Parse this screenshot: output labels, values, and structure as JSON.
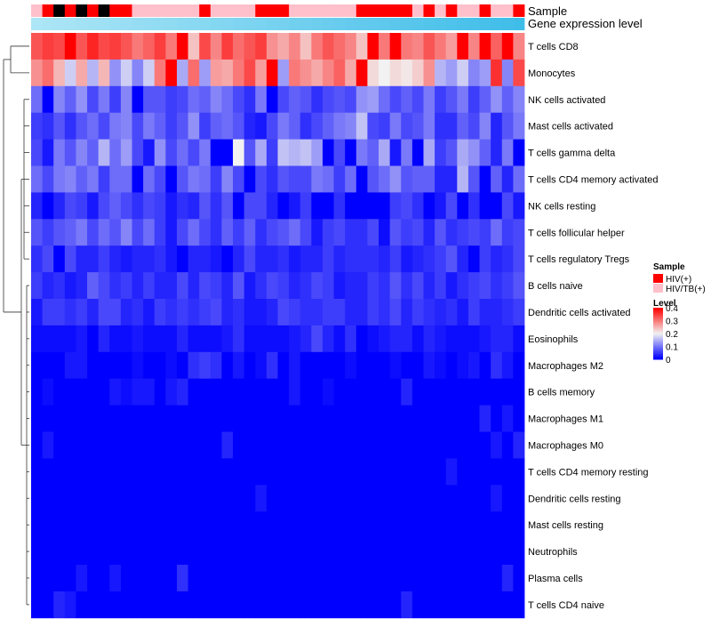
{
  "chart_data": {
    "type": "heatmap",
    "title": "",
    "annotation_tracks": [
      {
        "name": "Sample"
      },
      {
        "name": "Gene expression level"
      }
    ],
    "sample_groups": [
      {
        "label": "HIV(+)",
        "color": "#ff0000"
      },
      {
        "label": "HIV/TB(+)",
        "color": "#ffc0cb"
      }
    ],
    "sample_assignment": "21010101122222212222111222222111112121221221",
    "expression_gradient": {
      "from": "#ade6f6",
      "to": "#3fbde9"
    },
    "legend": {
      "sample_title": "Sample",
      "level_title": "Level",
      "ticks": [
        "0",
        "0.1",
        "0.2",
        "0.3",
        "0.4"
      ],
      "tick_values": [
        0,
        0.1,
        0.2,
        0.3,
        0.4
      ]
    },
    "color_scale": {
      "min": 0,
      "mid": 0.2,
      "max": 0.4,
      "low": "#0000ff",
      "midcolor": "#f2f2f2",
      "high": "#ff0000"
    },
    "value_range": [
      0,
      0.4
    ],
    "columns": 44,
    "rows": [
      "T cells CD8",
      "Monocytes",
      "NK cells activated",
      "Mast cells activated",
      "T cells gamma delta",
      "T cells CD4 memory activated",
      "NK cells resting",
      "T cells follicular helper",
      "T cells regulatory  Tregs",
      "B cells naive",
      "Dendritic cells activated",
      "Eosinophils",
      "Macrophages M2",
      "B cells memory",
      "Macrophages M1",
      "Macrophages M0",
      "T cells CD4 memory resting",
      "Dendritic cells resting",
      "Mast cells resting",
      "Neutrophils",
      "Plasma cells",
      "T cells CD4 naive"
    ],
    "values": [
      [
        0.33,
        0.35,
        0.34,
        0.4,
        0.33,
        0.37,
        0.34,
        0.35,
        0.33,
        0.3,
        0.32,
        0.35,
        0.3,
        0.4,
        0.24,
        0.34,
        0.29,
        0.35,
        0.31,
        0.33,
        0.35,
        0.28,
        0.26,
        0.29,
        0.24,
        0.3,
        0.33,
        0.31,
        0.29,
        0.24,
        0.4,
        0.3,
        0.4,
        0.3,
        0.29,
        0.33,
        0.3,
        0.27,
        0.4,
        0.29,
        0.4,
        0.32,
        0.4,
        0.29
      ],
      [
        0.28,
        0.31,
        0.25,
        0.17,
        0.26,
        0.15,
        0.25,
        0.12,
        0.17,
        0.11,
        0.17,
        0.3,
        0.4,
        0.14,
        0.31,
        0.13,
        0.27,
        0.26,
        0.3,
        0.34,
        0.27,
        0.4,
        0.13,
        0.3,
        0.28,
        0.26,
        0.29,
        0.32,
        0.26,
        0.4,
        0.22,
        0.2,
        0.22,
        0.21,
        0.23,
        0.28,
        0.15,
        0.13,
        0.17,
        0.11,
        0.13,
        0.36,
        0.11,
        0.34
      ],
      [
        0.09,
        0.0,
        0.11,
        0.08,
        0.12,
        0.06,
        0.1,
        0.05,
        0.11,
        0.0,
        0.07,
        0.07,
        0.05,
        0.06,
        0.09,
        0.08,
        0.11,
        0.09,
        0.06,
        0.04,
        0.1,
        0.0,
        0.06,
        0.08,
        0.07,
        0.04,
        0.06,
        0.07,
        0.06,
        0.12,
        0.13,
        0.09,
        0.06,
        0.08,
        0.06,
        0.1,
        0.05,
        0.07,
        0.1,
        0.05,
        0.08,
        0.12,
        0.08,
        0.11
      ],
      [
        0.05,
        0.04,
        0.07,
        0.04,
        0.07,
        0.09,
        0.06,
        0.1,
        0.11,
        0.06,
        0.1,
        0.08,
        0.05,
        0.07,
        0.12,
        0.05,
        0.08,
        0.09,
        0.07,
        0.03,
        0.02,
        0.06,
        0.1,
        0.08,
        0.04,
        0.06,
        0.08,
        0.1,
        0.11,
        0.16,
        0.06,
        0.05,
        0.1,
        0.06,
        0.07,
        0.1,
        0.04,
        0.04,
        0.08,
        0.06,
        0.11,
        0.03,
        0.07,
        0.1
      ],
      [
        0.06,
        0.02,
        0.1,
        0.07,
        0.11,
        0.08,
        0.15,
        0.09,
        0.13,
        0.06,
        0.02,
        0.12,
        0.06,
        0.09,
        0.06,
        0.1,
        0.0,
        0.0,
        0.2,
        0.07,
        0.14,
        0.05,
        0.16,
        0.15,
        0.16,
        0.13,
        0.0,
        0.06,
        0.0,
        0.1,
        0.08,
        0.14,
        0.02,
        0.1,
        0.0,
        0.14,
        0.05,
        0.07,
        0.14,
        0.12,
        0.08,
        0.03,
        0.1,
        0.0
      ],
      [
        0.09,
        0.06,
        0.1,
        0.11,
        0.08,
        0.1,
        0.05,
        0.09,
        0.09,
        0.0,
        0.09,
        0.06,
        0.0,
        0.07,
        0.1,
        0.09,
        0.05,
        0.11,
        0.06,
        0.0,
        0.06,
        0.04,
        0.07,
        0.06,
        0.06,
        0.1,
        0.09,
        0.05,
        0.09,
        0.0,
        0.07,
        0.09,
        0.12,
        0.07,
        0.08,
        0.08,
        0.03,
        0.03,
        0.15,
        0.07,
        0.0,
        0.08,
        0.03,
        0.09
      ],
      [
        0.03,
        0.0,
        0.03,
        0.06,
        0.05,
        0.02,
        0.06,
        0.08,
        0.06,
        0.04,
        0.06,
        0.05,
        0.02,
        0.04,
        0.03,
        0.07,
        0.04,
        0.07,
        0.0,
        0.06,
        0.06,
        0.03,
        0.0,
        0.02,
        0.05,
        0.0,
        0.0,
        0.04,
        0.0,
        0.0,
        0.0,
        0.0,
        0.05,
        0.06,
        0.04,
        0.0,
        0.02,
        0.06,
        0.0,
        0.04,
        0.0,
        0.0,
        0.06,
        0.02
      ],
      [
        0.07,
        0.05,
        0.07,
        0.08,
        0.1,
        0.06,
        0.09,
        0.07,
        0.11,
        0.06,
        0.09,
        0.05,
        0.02,
        0.06,
        0.09,
        0.06,
        0.04,
        0.08,
        0.05,
        0.08,
        0.04,
        0.06,
        0.07,
        0.09,
        0.06,
        0.02,
        0.05,
        0.06,
        0.04,
        0.04,
        0.06,
        0.01,
        0.07,
        0.05,
        0.06,
        0.03,
        0.07,
        0.04,
        0.05,
        0.06,
        0.05,
        0.09,
        0.05,
        0.06
      ],
      [
        0.04,
        0.06,
        0.0,
        0.06,
        0.03,
        0.03,
        0.05,
        0.03,
        0.02,
        0.03,
        0.03,
        0.04,
        0.02,
        0.0,
        0.03,
        0.03,
        0.02,
        0.0,
        0.03,
        0.06,
        0.03,
        0.03,
        0.04,
        0.02,
        0.03,
        0.03,
        0.05,
        0.03,
        0.04,
        0.04,
        0.04,
        0.03,
        0.05,
        0.02,
        0.03,
        0.04,
        0.05,
        0.07,
        0.03,
        0.0,
        0.05,
        0.03,
        0.04,
        0.06
      ],
      [
        0.05,
        0.03,
        0.04,
        0.02,
        0.03,
        0.08,
        0.06,
        0.04,
        0.05,
        0.03,
        0.05,
        0.03,
        0.03,
        0.06,
        0.03,
        0.06,
        0.05,
        0.03,
        0.07,
        0.02,
        0.04,
        0.06,
        0.05,
        0.03,
        0.04,
        0.06,
        0.05,
        0.02,
        0.03,
        0.03,
        0.05,
        0.04,
        0.07,
        0.04,
        0.06,
        0.03,
        0.05,
        0.02,
        0.04,
        0.05,
        0.06,
        0.04,
        0.05,
        0.07
      ],
      [
        0.02,
        0.05,
        0.05,
        0.04,
        0.05,
        0.03,
        0.06,
        0.06,
        0.03,
        0.04,
        0.02,
        0.05,
        0.04,
        0.05,
        0.04,
        0.05,
        0.06,
        0.03,
        0.04,
        0.02,
        0.02,
        0.03,
        0.06,
        0.05,
        0.04,
        0.04,
        0.05,
        0.05,
        0.03,
        0.03,
        0.05,
        0.04,
        0.06,
        0.03,
        0.05,
        0.04,
        0.03,
        0.04,
        0.02,
        0.05,
        0.03,
        0.03,
        0.04,
        0.05
      ],
      [
        0.01,
        0.01,
        0.01,
        0.01,
        0.02,
        0.0,
        0.03,
        0.01,
        0.01,
        0.02,
        0.01,
        0.01,
        0.01,
        0.03,
        0.01,
        0.01,
        0.01,
        0.02,
        0.04,
        0.01,
        0.01,
        0.01,
        0.01,
        0.02,
        0.03,
        0.06,
        0.03,
        0.01,
        0.04,
        0.0,
        0.01,
        0.02,
        0.03,
        0.03,
        0.01,
        0.03,
        0.02,
        0.01,
        0.01,
        0.01,
        0.02,
        0.03,
        0.03,
        0.01
      ],
      [
        0.0,
        0.0,
        0.0,
        0.02,
        0.02,
        0.0,
        0.0,
        0.0,
        0.0,
        0.01,
        0.0,
        0.0,
        0.01,
        0.0,
        0.04,
        0.05,
        0.04,
        0.0,
        0.02,
        0.0,
        0.01,
        0.04,
        0.0,
        0.02,
        0.0,
        0.0,
        0.0,
        0.0,
        0.01,
        0.0,
        0.0,
        0.0,
        0.01,
        0.0,
        0.0,
        0.02,
        0.01,
        0.0,
        0.01,
        0.02,
        0.0,
        0.04,
        0.02,
        0.0
      ],
      [
        0.0,
        0.01,
        0.0,
        0.0,
        0.0,
        0.0,
        0.0,
        0.02,
        0.01,
        0.02,
        0.02,
        0.0,
        0.02,
        0.03,
        0.0,
        0.0,
        0.0,
        0.0,
        0.0,
        0.0,
        0.0,
        0.0,
        0.0,
        0.02,
        0.0,
        0.0,
        0.01,
        0.0,
        0.0,
        0.0,
        0.0,
        0.0,
        0.0,
        0.03,
        0.0,
        0.0,
        0.0,
        0.0,
        0.0,
        0.0,
        0.0,
        0.0,
        0.0,
        0.0
      ],
      [
        0.0,
        0.0,
        0.0,
        0.0,
        0.0,
        0.0,
        0.0,
        0.0,
        0.0,
        0.0,
        0.0,
        0.0,
        0.0,
        0.0,
        0.0,
        0.0,
        0.0,
        0.0,
        0.0,
        0.0,
        0.0,
        0.0,
        0.0,
        0.0,
        0.0,
        0.0,
        0.0,
        0.0,
        0.0,
        0.0,
        0.0,
        0.0,
        0.0,
        0.0,
        0.0,
        0.0,
        0.0,
        0.0,
        0.0,
        0.0,
        0.03,
        0.0,
        0.02,
        0.0
      ],
      [
        0.0,
        0.02,
        0.0,
        0.0,
        0.0,
        0.0,
        0.0,
        0.0,
        0.0,
        0.0,
        0.0,
        0.0,
        0.0,
        0.0,
        0.0,
        0.0,
        0.0,
        0.03,
        0.0,
        0.0,
        0.0,
        0.0,
        0.0,
        0.0,
        0.0,
        0.0,
        0.0,
        0.0,
        0.0,
        0.0,
        0.0,
        0.0,
        0.0,
        0.0,
        0.0,
        0.0,
        0.0,
        0.0,
        0.0,
        0.0,
        0.0,
        0.02,
        0.0,
        0.03
      ],
      [
        0.0,
        0.0,
        0.0,
        0.0,
        0.0,
        0.0,
        0.0,
        0.0,
        0.0,
        0.0,
        0.0,
        0.0,
        0.0,
        0.0,
        0.0,
        0.0,
        0.0,
        0.0,
        0.0,
        0.0,
        0.0,
        0.0,
        0.0,
        0.0,
        0.0,
        0.0,
        0.0,
        0.0,
        0.0,
        0.0,
        0.0,
        0.0,
        0.0,
        0.0,
        0.0,
        0.0,
        0.0,
        0.02,
        0.0,
        0.0,
        0.0,
        0.0,
        0.0,
        0.0
      ],
      [
        0.0,
        0.0,
        0.0,
        0.0,
        0.0,
        0.0,
        0.0,
        0.0,
        0.0,
        0.0,
        0.0,
        0.0,
        0.0,
        0.0,
        0.0,
        0.0,
        0.0,
        0.0,
        0.0,
        0.0,
        0.02,
        0.0,
        0.0,
        0.0,
        0.0,
        0.0,
        0.0,
        0.0,
        0.0,
        0.0,
        0.0,
        0.0,
        0.0,
        0.0,
        0.0,
        0.0,
        0.0,
        0.0,
        0.0,
        0.0,
        0.0,
        0.02,
        0.0,
        0.0
      ],
      [
        0.0,
        0.0,
        0.0,
        0.0,
        0.0,
        0.0,
        0.0,
        0.0,
        0.0,
        0.0,
        0.0,
        0.0,
        0.0,
        0.0,
        0.0,
        0.0,
        0.0,
        0.0,
        0.0,
        0.0,
        0.0,
        0.0,
        0.0,
        0.0,
        0.0,
        0.0,
        0.0,
        0.0,
        0.0,
        0.0,
        0.0,
        0.0,
        0.0,
        0.0,
        0.0,
        0.0,
        0.0,
        0.0,
        0.0,
        0.0,
        0.0,
        0.0,
        0.0,
        0.0
      ],
      [
        0.0,
        0.0,
        0.0,
        0.0,
        0.0,
        0.0,
        0.0,
        0.0,
        0.0,
        0.0,
        0.0,
        0.0,
        0.0,
        0.0,
        0.0,
        0.0,
        0.0,
        0.0,
        0.0,
        0.0,
        0.0,
        0.0,
        0.0,
        0.0,
        0.0,
        0.0,
        0.0,
        0.0,
        0.0,
        0.0,
        0.0,
        0.0,
        0.0,
        0.0,
        0.0,
        0.0,
        0.0,
        0.0,
        0.0,
        0.0,
        0.0,
        0.0,
        0.0,
        0.0
      ],
      [
        0.0,
        0.0,
        0.0,
        0.0,
        0.02,
        0.0,
        0.0,
        0.02,
        0.0,
        0.0,
        0.0,
        0.0,
        0.0,
        0.04,
        0.0,
        0.0,
        0.0,
        0.0,
        0.0,
        0.0,
        0.0,
        0.0,
        0.0,
        0.0,
        0.0,
        0.0,
        0.0,
        0.0,
        0.0,
        0.0,
        0.0,
        0.0,
        0.0,
        0.0,
        0.0,
        0.0,
        0.0,
        0.0,
        0.0,
        0.0,
        0.0,
        0.0,
        0.03,
        0.0
      ],
      [
        0.0,
        0.0,
        0.03,
        0.02,
        0.0,
        0.0,
        0.0,
        0.0,
        0.0,
        0.0,
        0.0,
        0.0,
        0.0,
        0.0,
        0.0,
        0.0,
        0.0,
        0.0,
        0.0,
        0.0,
        0.0,
        0.0,
        0.0,
        0.0,
        0.0,
        0.0,
        0.0,
        0.0,
        0.0,
        0.0,
        0.0,
        0.0,
        0.0,
        0.03,
        0.0,
        0.0,
        0.0,
        0.0,
        0.0,
        0.0,
        0.0,
        0.0,
        0.0,
        0.0
      ]
    ]
  }
}
